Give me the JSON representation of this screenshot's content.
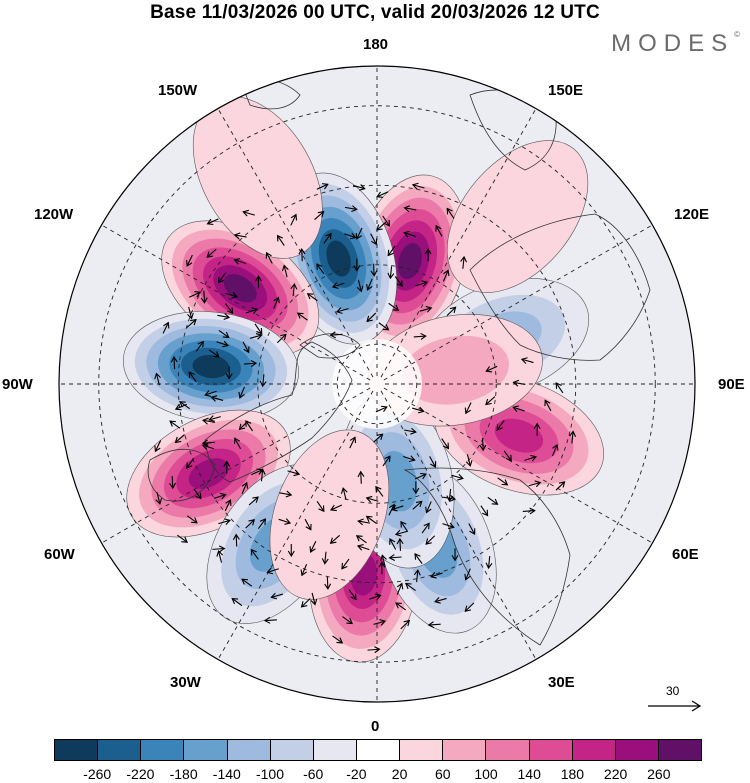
{
  "title": "Base 11/03/2026 00 UTC, valid 20/03/2026 12 UTC",
  "brand": "MODES",
  "brand_mark": "©",
  "longitude_labels": [
    "180",
    "150E",
    "120E",
    "90E",
    "60E",
    "30E",
    "0",
    "30W",
    "60W",
    "90W",
    "120W",
    "150W"
  ],
  "wind_reference": {
    "value": "30",
    "icon": "arrow-right-icon"
  },
  "colorbar": {
    "labels": [
      "-260",
      "-220",
      "-180",
      "-140",
      "-100",
      "-60",
      "-20",
      "20",
      "60",
      "100",
      "140",
      "180",
      "220",
      "260"
    ],
    "colors": [
      "#0e3b5b",
      "#1b5f8f",
      "#3b84b9",
      "#679fcd",
      "#9ebbdf",
      "#c3cfe6",
      "#e7e7f2",
      "#ffffff",
      "#fbd6de",
      "#f4a9c0",
      "#ec7aa8",
      "#df4c96",
      "#c42486",
      "#9a0f7c",
      "#611067"
    ]
  },
  "anomaly_field": [
    {
      "lon": 165,
      "lat": 58,
      "value": 300
    },
    {
      "lon": -163,
      "lat": 57,
      "value": -300
    },
    {
      "lon": -125,
      "lat": 48,
      "value": 260
    },
    {
      "lon": -96,
      "lat": 48,
      "value": -260
    },
    {
      "lon": -62,
      "lat": 42,
      "value": 220
    },
    {
      "lon": -33,
      "lat": 42,
      "value": -160
    },
    {
      "lon": -4,
      "lat": 42,
      "value": 230
    },
    {
      "lon": 20,
      "lat": 46,
      "value": -160
    },
    {
      "lon": 12,
      "lat": 65,
      "value": -140
    },
    {
      "lon": 70,
      "lat": 52,
      "value": 180
    },
    {
      "lon": 110,
      "lat": 56,
      "value": -130
    },
    {
      "lon": 100,
      "lat": 70,
      "value": 60
    },
    {
      "lon": -20,
      "lat": 55,
      "value": 40
    },
    {
      "lon": 140,
      "lat": 35,
      "value": 40
    },
    {
      "lon": -150,
      "lat": 30,
      "value": 50
    }
  ]
}
